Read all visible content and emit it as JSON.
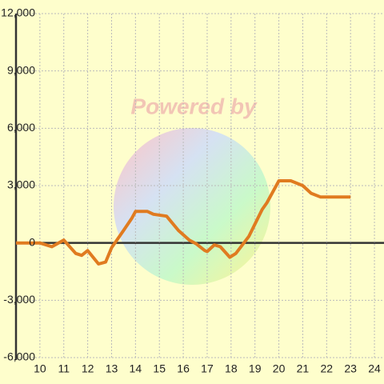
{
  "chart_data": {
    "type": "line",
    "watermark": "Powered by",
    "x": [
      9,
      10,
      10.5,
      11,
      11.5,
      11.75,
      12,
      12.45,
      12.75,
      13,
      13.5,
      13.85,
      14,
      14.5,
      14.75,
      15.3,
      15.8,
      16.25,
      16.55,
      16.9,
      17,
      17.3,
      17.55,
      17.95,
      18.2,
      18.75,
      19.3,
      19.5,
      20,
      20.5,
      21,
      21.35,
      21.75,
      23
    ],
    "series": [
      {
        "color": "#e07b20",
        "values": [
          0,
          0,
          -200,
          150,
          -550,
          -650,
          -400,
          -1100,
          -1000,
          -250,
          650,
          1300,
          1650,
          1650,
          1500,
          1400,
          650,
          150,
          -50,
          -400,
          -450,
          -100,
          -200,
          -750,
          -550,
          350,
          1750,
          2100,
          3250,
          3250,
          3000,
          2600,
          2400,
          2400
        ]
      }
    ],
    "xlim": [
      9,
      24.4
    ],
    "xticks": [
      10,
      11,
      12,
      13,
      14,
      15,
      16,
      17,
      18,
      19,
      20,
      21,
      22,
      23,
      24
    ],
    "ylim": [
      -6000,
      12000
    ],
    "yticks": [
      {
        "value": -6000,
        "label": "-6,000"
      },
      {
        "value": -3000,
        "label": "-3,000"
      },
      0,
      {
        "value": 3000,
        "label": "3,000"
      },
      {
        "value": 6000,
        "label": "6,000"
      },
      {
        "value": 9000,
        "label": "9,000"
      },
      {
        "value": 12000,
        "label": "12,000"
      }
    ],
    "grid": true
  }
}
